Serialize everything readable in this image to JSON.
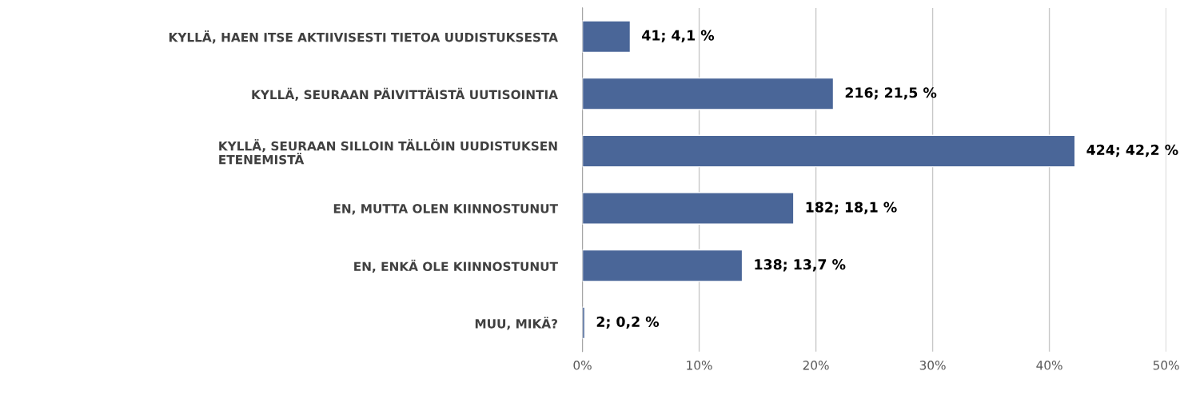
{
  "chart_data": {
    "type": "bar",
    "orientation": "horizontal",
    "categories": [
      "KYLLÄ, HAEN ITSE AKTIIVISESTI TIETOA UUDISTUKSESTA",
      "KYLLÄ, SEURAAN PÄIVITTÄISTÄ UUTISOINTIA",
      "KYLLÄ, SEURAAN SILLOIN TÄLLÖIN UUDISTUKSEN\nETENEMISTÄ",
      "EN, MUTTA OLEN KIINNOSTUNUT",
      "EN, ENKÄ OLE KIINNOSTUNUT",
      "MUU, MIKÄ?"
    ],
    "values": [
      4.1,
      21.5,
      42.2,
      18.1,
      13.7,
      0.2
    ],
    "value_labels": [
      "41; 4,1 %",
      "216; 21,5 %",
      "424; 42,2 %",
      "182; 18,1 %",
      "138; 13,7 %",
      "2; 0,2 %"
    ],
    "color": "#4a6698",
    "xlim": [
      0,
      50
    ],
    "xticks": [
      {
        "value": 0,
        "label": "0%"
      },
      {
        "value": 10,
        "label": "10%"
      },
      {
        "value": 20,
        "label": "20%"
      },
      {
        "value": 30,
        "label": "30%"
      },
      {
        "value": 40,
        "label": "40%"
      },
      {
        "value": 50,
        "label": "50%"
      }
    ],
    "grid": "x"
  }
}
